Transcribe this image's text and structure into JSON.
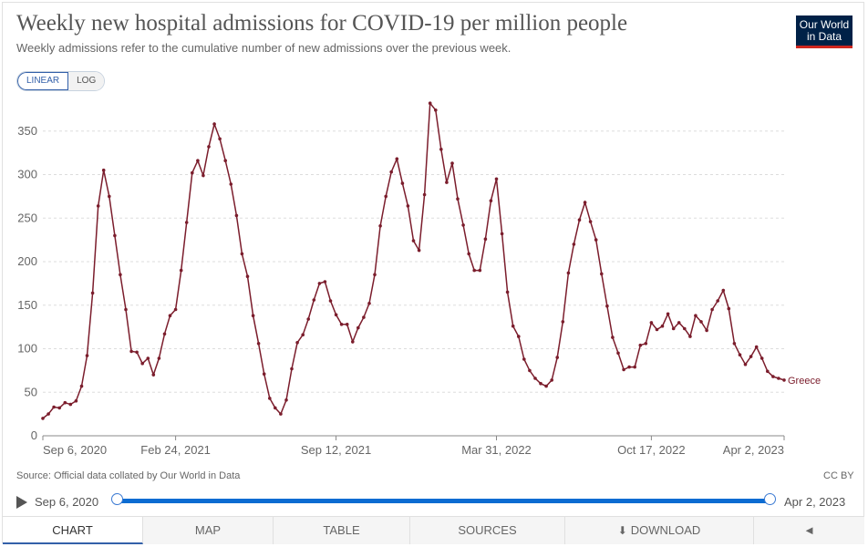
{
  "header": {
    "title": "Weekly new hospital admissions for COVID-19 per million people",
    "subtitle": "Weekly admissions refer to the cumulative number of new admissions over the previous week.",
    "logo_line1": "Our World",
    "logo_line2": "in Data"
  },
  "controls": {
    "linear_label": "LINEAR",
    "log_label": "LOG",
    "selected_scale": "LINEAR"
  },
  "footer": {
    "source": "Source: Official data collated by Our World in Data",
    "license": "CC BY"
  },
  "timeline": {
    "start": "Sep 6, 2020",
    "end": "Apr 2, 2023",
    "play_icon": "play-icon"
  },
  "tabs": [
    {
      "label": "CHART",
      "active": true
    },
    {
      "label": "MAP",
      "active": false
    },
    {
      "label": "TABLE",
      "active": false
    },
    {
      "label": "SOURCES",
      "active": false
    },
    {
      "label": "DOWNLOAD",
      "active": false,
      "icon": "download-icon"
    },
    {
      "label": "",
      "active": false,
      "icon": "share-icon"
    }
  ],
  "colors": {
    "series": "#7b1d2c",
    "grid": "#dddddd",
    "accent": "#3360a9",
    "logo_bg": "#002147",
    "logo_stripe": "#ce261e"
  },
  "chart_data": {
    "type": "line",
    "title": "Weekly new hospital admissions for COVID-19 per million people",
    "xlabel": "",
    "ylabel": "",
    "ylim": [
      0,
      380
    ],
    "y_ticks": [
      0,
      50,
      100,
      150,
      200,
      250,
      300,
      350
    ],
    "x_tick_labels": [
      "Sep 6, 2020",
      "Feb 24, 2021",
      "Sep 12, 2021",
      "Mar 31, 2022",
      "Oct 17, 2022",
      "Apr 2, 2023"
    ],
    "x_tick_weeks": [
      0,
      24,
      53,
      82,
      110,
      134
    ],
    "grid": true,
    "series": [
      {
        "name": "Greece",
        "x_start": "Sep 6, 2020",
        "x_step": "1 week",
        "values": [
          20,
          25,
          33,
          32,
          38,
          36,
          40,
          57,
          92,
          164,
          264,
          305,
          275,
          230,
          185,
          145,
          97,
          96,
          83,
          89,
          70,
          89,
          117,
          138,
          145,
          190,
          245,
          302,
          316,
          299,
          332,
          358,
          341,
          316,
          289,
          253,
          209,
          183,
          138,
          106,
          71,
          43,
          32,
          25,
          41,
          77,
          107,
          116,
          134,
          156,
          175,
          177,
          155,
          139,
          128,
          128,
          108,
          124,
          136,
          152,
          185,
          241,
          275,
          303,
          318,
          290,
          264,
          224,
          213,
          277,
          382,
          374,
          329,
          291,
          313,
          272,
          242,
          209,
          190,
          190,
          226,
          270,
          295,
          232,
          165,
          126,
          114,
          88,
          75,
          66,
          60,
          57,
          64,
          90,
          131,
          187,
          220,
          248,
          268,
          246,
          225,
          186,
          149,
          113,
          95,
          76,
          79,
          79,
          104,
          106,
          130,
          122,
          126,
          140,
          123,
          130,
          123,
          114,
          138,
          131,
          121,
          145,
          155,
          167,
          146,
          106,
          93,
          82,
          91,
          102,
          89,
          74,
          68,
          66,
          64
        ]
      }
    ]
  }
}
